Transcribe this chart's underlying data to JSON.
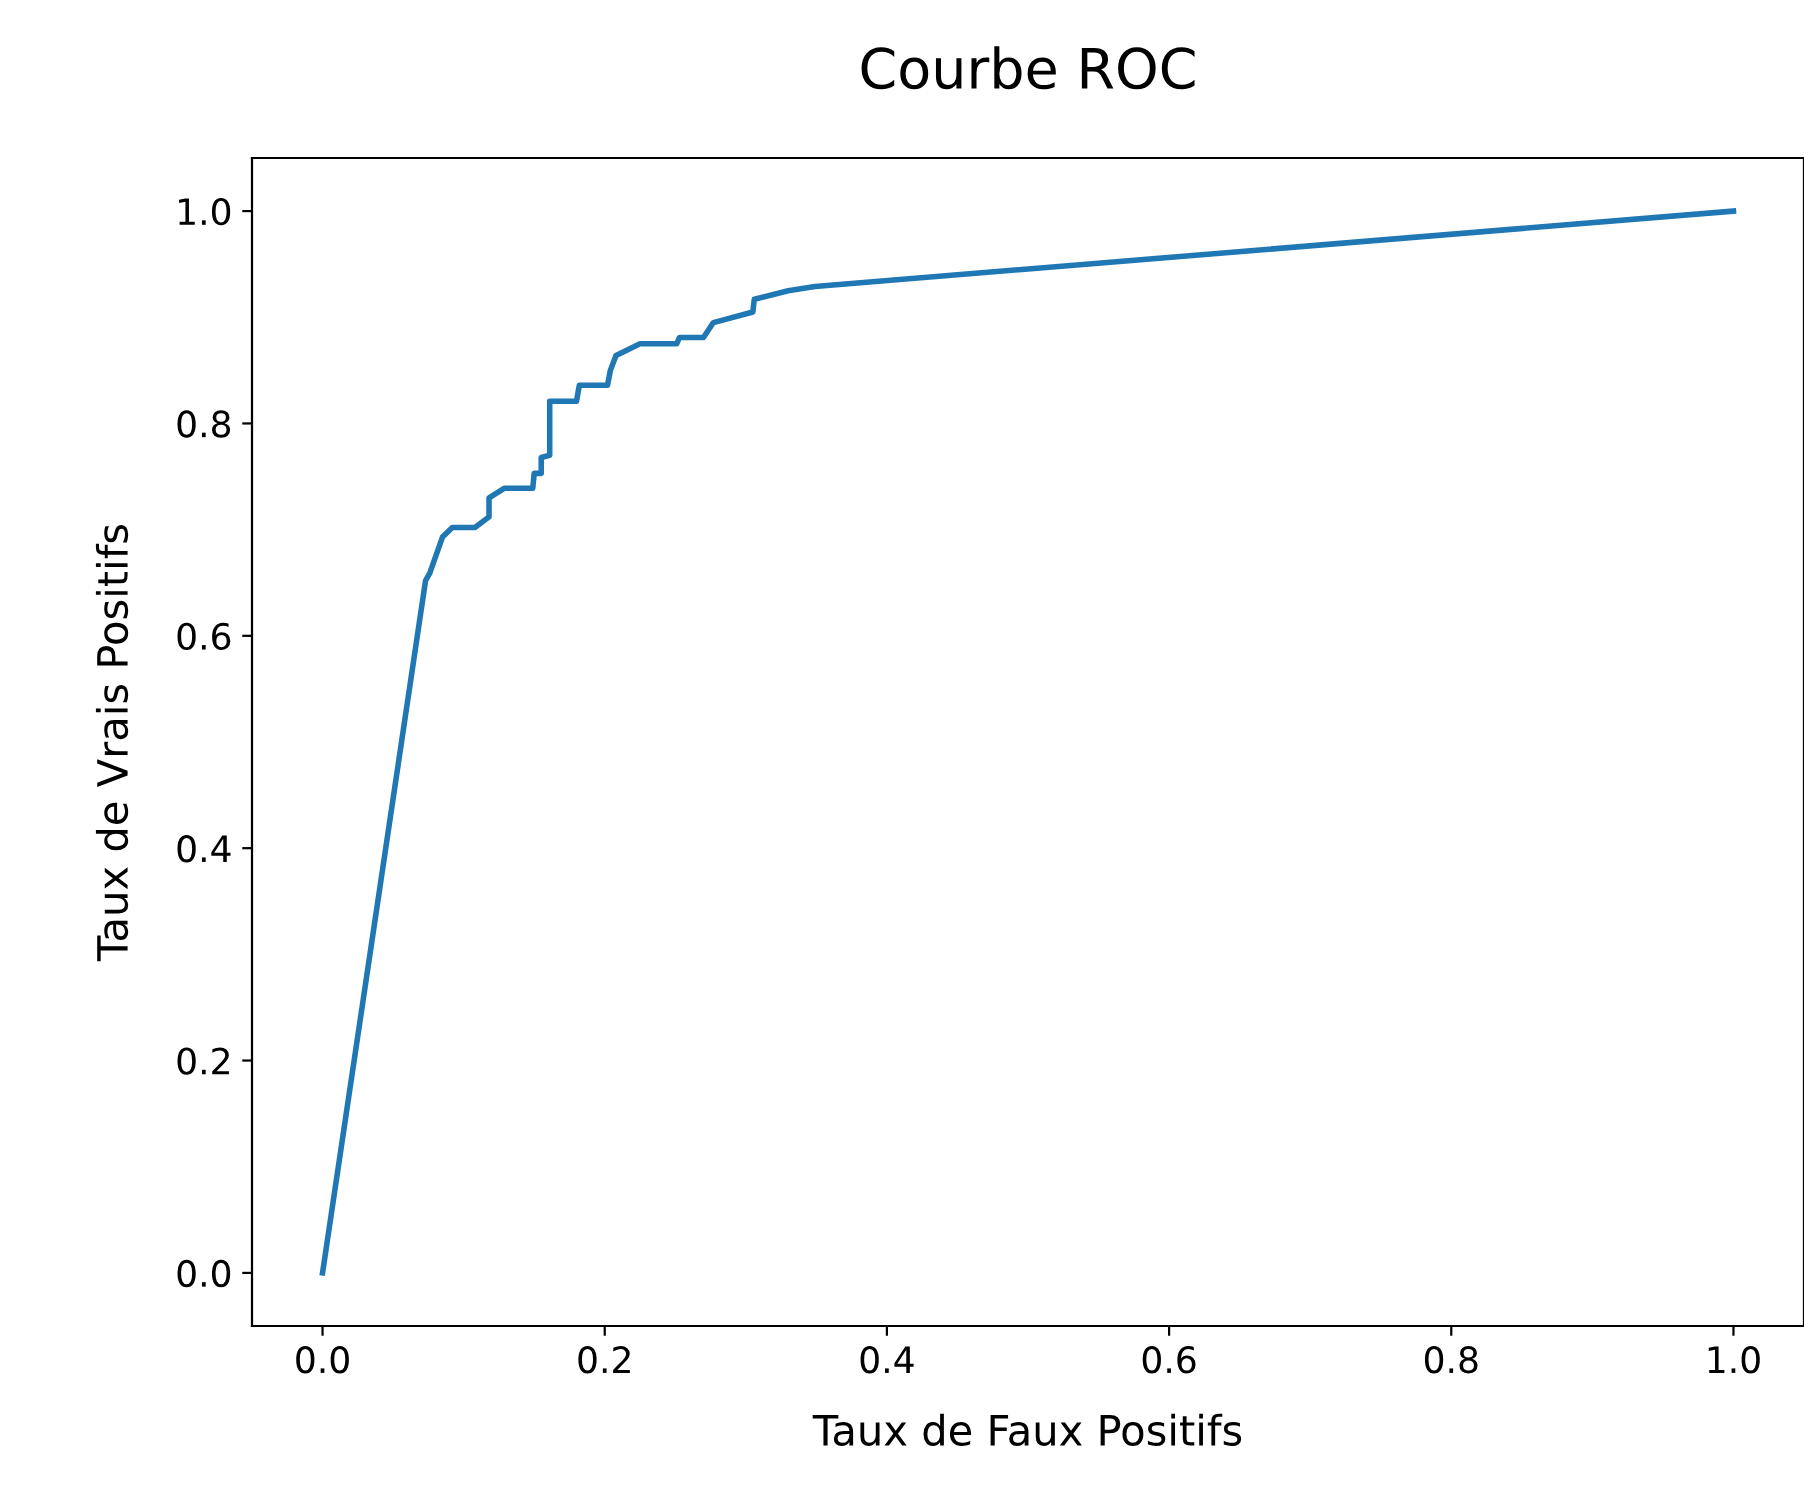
{
  "chart_data": {
    "type": "line",
    "title": "Courbe ROC",
    "xlabel": "Taux de Faux Positifs",
    "ylabel": "Taux de Vrais Positifs",
    "series": [
      {
        "color": "#1f77b4",
        "x": [
          0,
          0.073,
          0.076,
          0.085,
          0.092,
          0.108,
          0.118,
          0.118,
          0.129,
          0.149,
          0.15,
          0.155,
          0.155,
          0.161,
          0.161,
          0.18,
          0.182,
          0.202,
          0.204,
          0.208,
          0.225,
          0.251,
          0.253,
          0.27,
          0.277,
          0.305,
          0.306,
          0.33,
          0.349,
          1.0
        ],
        "values": [
          0,
          0.652,
          0.659,
          0.693,
          0.702,
          0.702,
          0.712,
          0.73,
          0.739,
          0.739,
          0.753,
          0.753,
          0.768,
          0.77,
          0.821,
          0.821,
          0.836,
          0.836,
          0.85,
          0.864,
          0.875,
          0.875,
          0.881,
          0.881,
          0.895,
          0.905,
          0.917,
          0.925,
          0.929,
          1.0
        ]
      }
    ],
    "xlim": [
      -0.05,
      1.05
    ],
    "ylim": [
      -0.05,
      1.05
    ],
    "xticks": [
      {
        "value": 0,
        "label": "0.0"
      },
      {
        "value": 0.2,
        "label": "0.2"
      },
      {
        "value": 0.4,
        "label": "0.4"
      },
      {
        "value": 0.6,
        "label": "0.6"
      },
      {
        "value": 0.8,
        "label": "0.8"
      },
      {
        "value": 1.0,
        "label": "1.0"
      }
    ],
    "yticks": [
      {
        "value": 0,
        "label": "0.0"
      },
      {
        "value": 0.2,
        "label": "0.2"
      },
      {
        "value": 0.4,
        "label": "0.4"
      },
      {
        "value": 0.6,
        "label": "0.6"
      },
      {
        "value": 0.8,
        "label": "0.8"
      },
      {
        "value": 1.0,
        "label": "1.0"
      }
    ],
    "grid": false,
    "legend": false
  }
}
